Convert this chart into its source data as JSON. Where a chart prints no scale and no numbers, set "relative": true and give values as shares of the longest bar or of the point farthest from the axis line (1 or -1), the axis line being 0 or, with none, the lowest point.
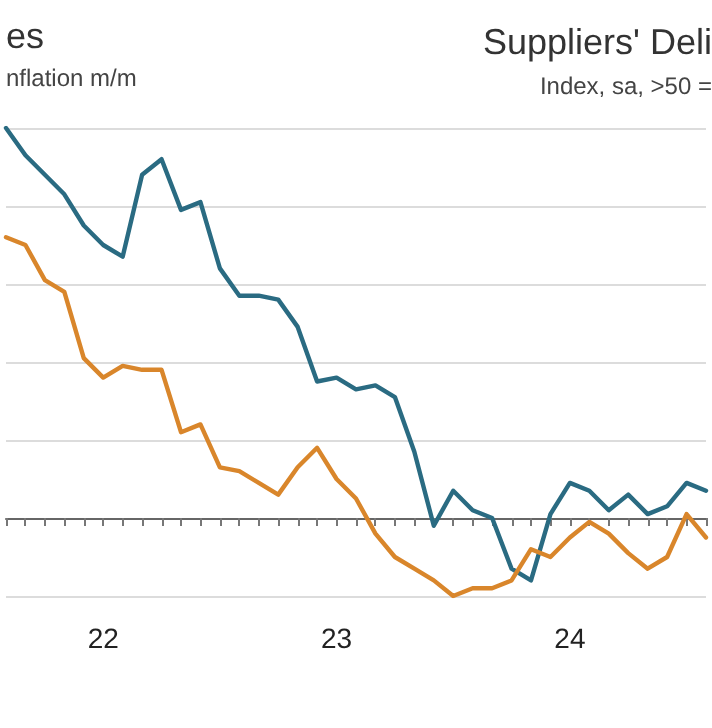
{
  "chart_data": {
    "type": "line",
    "title": "es",
    "subtitle": "nflation m/m",
    "annotations": [
      "Suppliers' Deli",
      "Index, sa, >50 ="
    ],
    "categories": [
      null,
      null,
      null,
      null,
      null,
      "22",
      null,
      null,
      null,
      null,
      null,
      null,
      null,
      null,
      null,
      null,
      null,
      "23",
      null,
      null,
      null,
      null,
      null,
      null,
      null,
      null,
      null,
      null,
      null,
      "24",
      null,
      null,
      null,
      null,
      null,
      null,
      null
    ],
    "relative": true,
    "grid": "y",
    "marker": "none",
    "line_style": "solid",
    "series": [
      {
        "color": "#2a6b82",
        "values": [
          1,
          0.93,
          0.88,
          0.83,
          0.75,
          0.7,
          0.67,
          0.88,
          0.92,
          0.79,
          0.81,
          0.64,
          0.57,
          0.57,
          0.56,
          0.49,
          0.35,
          0.36,
          0.33,
          0.34,
          0.31,
          0.17,
          -0.02,
          0.07,
          0.02,
          0,
          -0.13,
          -0.16,
          0.01,
          0.09,
          0.07,
          0.02,
          0.06,
          0.01,
          0.03,
          0.09,
          0.07
        ]
      },
      {
        "color": "#d9862b",
        "values": [
          0.72,
          0.7,
          0.61,
          0.58,
          0.41,
          0.36,
          0.39,
          0.38,
          0.38,
          0.22,
          0.24,
          0.13,
          0.12,
          0.09,
          0.06,
          0.13,
          0.18,
          0.1,
          0.05,
          -0.04,
          -0.1,
          -0.13,
          -0.16,
          -0.2,
          -0.18,
          -0.18,
          -0.16,
          -0.08,
          -0.1,
          -0.05,
          -0.01,
          -0.04,
          -0.09,
          -0.13,
          -0.1,
          0.01,
          -0.05
        ]
      }
    ]
  }
}
